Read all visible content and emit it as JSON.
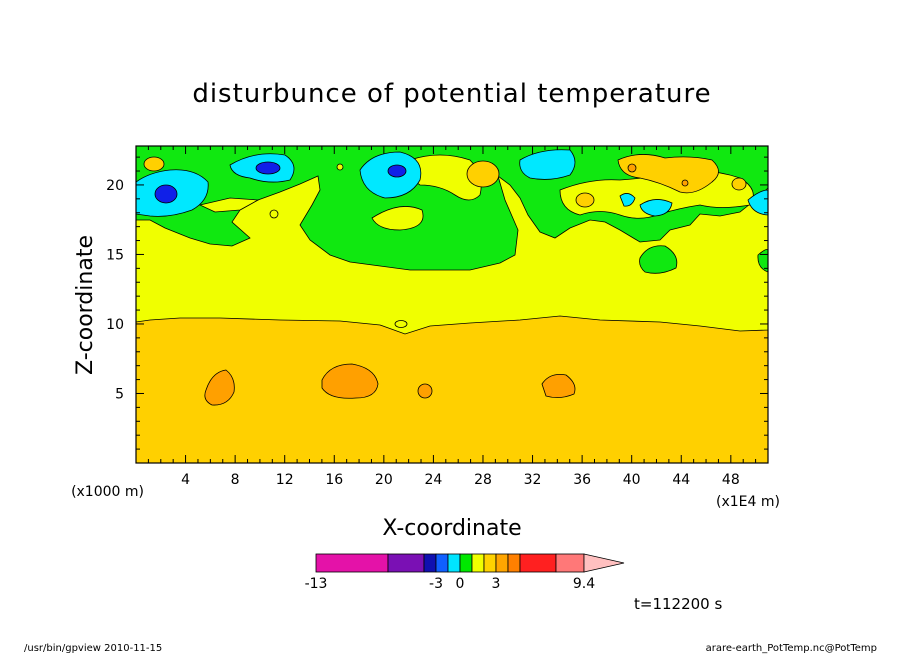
{
  "chart_data": {
    "type": "heatmap",
    "title": "disturbunce of potential temperature",
    "xlabel": "X-coordinate",
    "ylabel": "Z-coordinate",
    "x_unit": "(x1E4 m)",
    "z_unit": "(x1000 m)",
    "x_ticks": [
      4,
      8,
      12,
      16,
      20,
      24,
      28,
      32,
      36,
      40,
      44,
      48
    ],
    "z_ticks": [
      5,
      10,
      15,
      20
    ],
    "xlim": [
      0,
      51
    ],
    "zlim": [
      0,
      22.8
    ],
    "time_label": "t=112200 s",
    "colorbar": {
      "labels": [
        "-13",
        "-3",
        "0",
        "3",
        "9.4"
      ],
      "colors": [
        "#e412a8",
        "#7a10b4",
        "#1010b0",
        "#1060ff",
        "#00e4ff",
        "#00e800",
        "#f0ff00",
        "#ffd200",
        "#ffa500",
        "#ff8000",
        "#ff2020",
        "#ff7878",
        "#ffc0c0"
      ]
    },
    "levels": {
      "upper_green": "#10e810",
      "cyan": "#00e8ff",
      "blue": "#1020e8",
      "yellow": "#f0ff00",
      "gold": "#ffd000",
      "orange": "#ffa000"
    }
  },
  "footer": {
    "left": "/usr/bin/gpview   2010-11-15",
    "right": "arare-earth_PotTemp.nc@PotTemp"
  }
}
